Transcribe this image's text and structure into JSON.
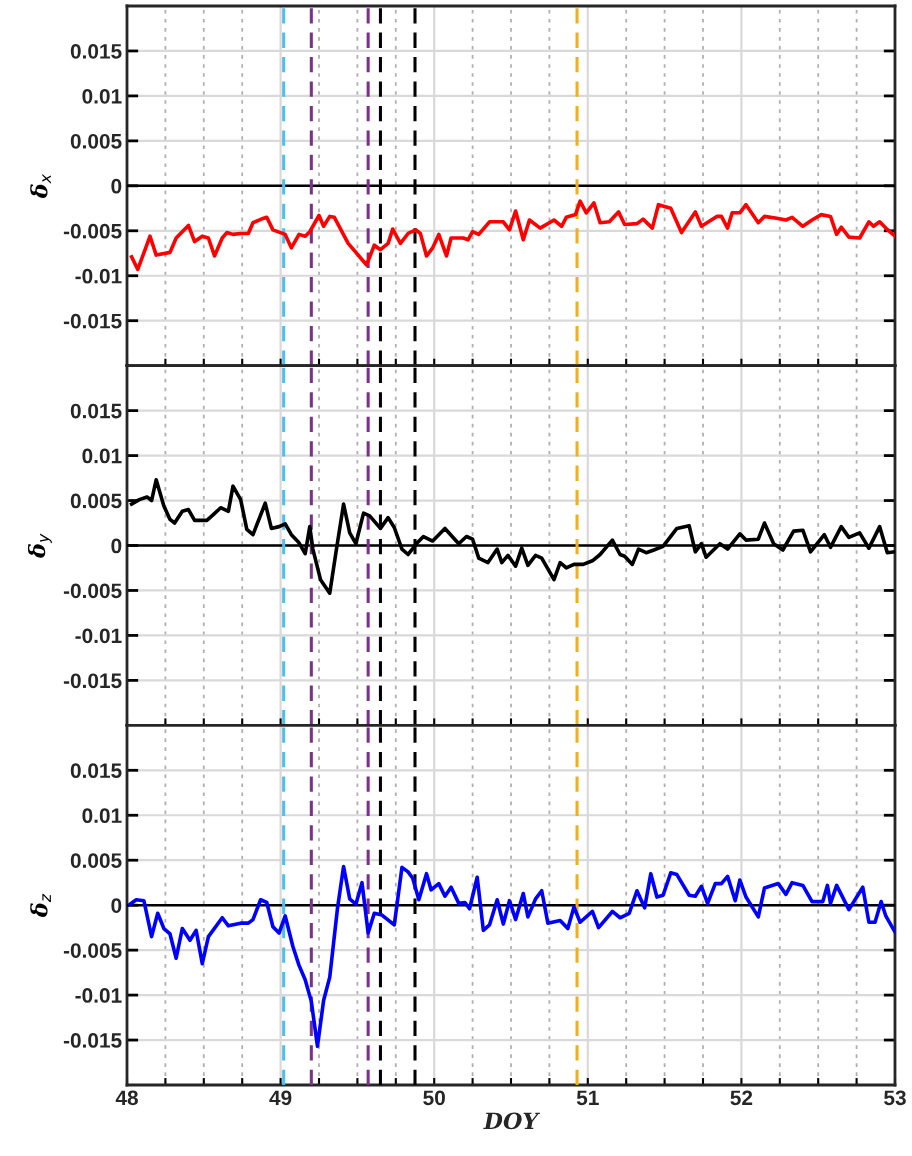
{
  "chart_data": [
    {
      "type": "line",
      "ylabel": "δ$_{x}$",
      "tick_labels": "y",
      "grid": true,
      "marker": "none",
      "line_style": "solid",
      "xlim": [
        48,
        53
      ],
      "xticks": [
        48,
        {
          "value": 48.25,
          "label": null
        },
        {
          "value": 48.5,
          "label": null
        },
        {
          "value": 48.75,
          "label": null
        },
        49,
        {
          "value": 49.25,
          "label": null
        },
        {
          "value": 49.5,
          "label": null
        },
        {
          "value": 49.75,
          "label": null
        },
        50,
        {
          "value": 50.25,
          "label": null
        },
        {
          "value": 50.5,
          "label": null
        },
        {
          "value": 50.75,
          "label": null
        },
        51,
        {
          "value": 51.25,
          "label": null
        },
        {
          "value": 51.5,
          "label": null
        },
        {
          "value": 51.75,
          "label": null
        },
        52,
        {
          "value": 52.25,
          "label": null
        },
        {
          "value": 52.5,
          "label": null
        },
        {
          "value": 52.75,
          "label": null
        },
        53
      ],
      "ylim": [
        -0.02,
        0.02
      ],
      "yticks": [
        -0.015,
        -0.01,
        -0.005,
        0,
        0.005,
        0.01,
        0.015
      ],
      "ref_lines": [
        {
          "axis": "y",
          "value": 0,
          "color": "#000000",
          "line_style": "solid"
        },
        {
          "axis": "x",
          "value": 49.02,
          "color": "#4dbeee",
          "line_style": "dashed"
        },
        {
          "axis": "x",
          "value": 49.2,
          "color": "#7e2f8e",
          "line_style": "dashed"
        },
        {
          "axis": "x",
          "value": 49.57,
          "color": "#7e2f8e",
          "line_style": "dashed"
        },
        {
          "axis": "x",
          "value": 49.65,
          "color": "#000000",
          "line_style": "dashed"
        },
        {
          "axis": "x",
          "value": 49.875,
          "color": "#000000",
          "line_style": "dashed"
        },
        {
          "axis": "x",
          "value": 50.93,
          "color": "#edb120",
          "line_style": "dashed"
        }
      ],
      "series": [
        {
          "color": "#ff0000",
          "x": [
            48.03,
            48.07,
            48.15,
            48.19,
            48.28,
            48.32,
            48.4,
            48.44,
            48.49,
            48.53,
            48.57,
            48.62,
            48.65,
            48.69,
            48.74,
            48.79,
            48.82,
            48.89,
            48.91,
            48.95,
            49.03,
            49.07,
            49.12,
            49.16,
            49.19,
            49.25,
            49.28,
            49.32,
            49.35,
            49.44,
            49.56,
            49.61,
            49.65,
            49.7,
            49.73,
            49.78,
            49.83,
            49.88,
            49.91,
            49.95,
            49.99,
            50.03,
            50.08,
            50.11,
            50.19,
            50.22,
            50.25,
            50.29,
            50.36,
            50.45,
            50.49,
            50.53,
            50.58,
            50.62,
            50.69,
            50.78,
            50.83,
            50.86,
            50.92,
            50.95,
            50.99,
            51.04,
            51.08,
            51.14,
            51.2,
            51.24,
            51.32,
            51.36,
            51.42,
            51.46,
            51.54,
            51.61,
            51.7,
            51.74,
            51.84,
            51.87,
            51.91,
            51.94,
            51.99,
            52.03,
            52.11,
            52.15,
            52.23,
            52.29,
            52.33,
            52.4,
            52.46,
            52.52,
            52.58,
            52.62,
            52.65,
            52.7,
            52.77,
            52.83,
            52.86,
            52.9,
            52.94,
            53.0
          ],
          "values": [
            -0.0079,
            -0.0093,
            -0.0056,
            -0.0077,
            -0.0074,
            -0.0058,
            -0.0044,
            -0.0062,
            -0.0056,
            -0.0058,
            -0.0078,
            -0.0058,
            -0.0052,
            -0.0054,
            -0.0053,
            -0.0053,
            -0.0041,
            -0.0036,
            -0.0035,
            -0.0049,
            -0.0054,
            -0.0069,
            -0.0054,
            -0.0056,
            -0.0051,
            -0.0033,
            -0.0045,
            -0.0034,
            -0.0035,
            -0.0064,
            -0.0088,
            -0.0066,
            -0.0071,
            -0.0064,
            -0.0048,
            -0.0064,
            -0.0053,
            -0.0049,
            -0.0053,
            -0.0078,
            -0.0069,
            -0.0054,
            -0.0078,
            -0.0058,
            -0.0058,
            -0.006,
            -0.0051,
            -0.0054,
            -0.004,
            -0.004,
            -0.0049,
            -0.0028,
            -0.006,
            -0.0038,
            -0.0047,
            -0.0038,
            -0.0045,
            -0.0035,
            -0.0032,
            -0.0017,
            -0.003,
            -0.0019,
            -0.0041,
            -0.004,
            -0.0029,
            -0.0043,
            -0.0042,
            -0.0037,
            -0.0047,
            -0.0021,
            -0.0025,
            -0.0052,
            -0.0029,
            -0.0045,
            -0.0034,
            -0.0034,
            -0.0047,
            -0.003,
            -0.003,
            -0.0021,
            -0.0041,
            -0.0034,
            -0.0036,
            -0.0038,
            -0.0035,
            -0.0045,
            -0.0038,
            -0.0032,
            -0.0034,
            -0.0054,
            -0.0046,
            -0.0057,
            -0.0058,
            -0.004,
            -0.0045,
            -0.004,
            -0.0047,
            -0.0056
          ]
        }
      ]
    },
    {
      "type": "line",
      "ylabel": "δ$_{y}$",
      "tick_labels": "y",
      "grid": true,
      "marker": "none",
      "line_style": "solid",
      "xlim": [
        48,
        53
      ],
      "xticks": [
        48,
        {
          "value": 48.25,
          "label": null
        },
        {
          "value": 48.5,
          "label": null
        },
        {
          "value": 48.75,
          "label": null
        },
        49,
        {
          "value": 49.25,
          "label": null
        },
        {
          "value": 49.5,
          "label": null
        },
        {
          "value": 49.75,
          "label": null
        },
        50,
        {
          "value": 50.25,
          "label": null
        },
        {
          "value": 50.5,
          "label": null
        },
        {
          "value": 50.75,
          "label": null
        },
        51,
        {
          "value": 51.25,
          "label": null
        },
        {
          "value": 51.5,
          "label": null
        },
        {
          "value": 51.75,
          "label": null
        },
        52,
        {
          "value": 52.25,
          "label": null
        },
        {
          "value": 52.5,
          "label": null
        },
        {
          "value": 52.75,
          "label": null
        },
        53
      ],
      "ylim": [
        -0.02,
        0.02
      ],
      "yticks": [
        -0.015,
        -0.01,
        -0.005,
        0,
        0.005,
        0.01,
        0.015
      ],
      "ref_lines": [
        {
          "axis": "y",
          "value": 0,
          "color": "#000000",
          "line_style": "solid"
        },
        {
          "axis": "x",
          "value": 49.02,
          "color": "#4dbeee",
          "line_style": "dashed"
        },
        {
          "axis": "x",
          "value": 49.2,
          "color": "#7e2f8e",
          "line_style": "dashed"
        },
        {
          "axis": "x",
          "value": 49.57,
          "color": "#7e2f8e",
          "line_style": "dashed"
        },
        {
          "axis": "x",
          "value": 49.65,
          "color": "#000000",
          "line_style": "dashed"
        },
        {
          "axis": "x",
          "value": 49.875,
          "color": "#000000",
          "line_style": "dashed"
        },
        {
          "axis": "x",
          "value": 50.93,
          "color": "#edb120",
          "line_style": "dashed"
        }
      ],
      "series": [
        {
          "color": "#000000",
          "x": [
            48.03,
            48.08,
            48.13,
            48.16,
            48.19,
            48.24,
            48.28,
            48.31,
            48.36,
            48.4,
            48.44,
            48.52,
            48.56,
            48.61,
            48.66,
            48.69,
            48.74,
            48.78,
            48.82,
            48.9,
            48.94,
            48.99,
            49.03,
            49.07,
            49.12,
            49.16,
            49.19,
            49.21,
            49.26,
            49.32,
            49.36,
            49.41,
            49.45,
            49.49,
            49.54,
            49.58,
            49.65,
            49.7,
            49.74,
            49.79,
            49.83,
            49.89,
            49.93,
            49.99,
            50.07,
            50.16,
            50.21,
            50.25,
            50.29,
            50.35,
            50.41,
            50.44,
            50.48,
            50.53,
            50.57,
            50.61,
            50.66,
            50.7,
            50.78,
            50.82,
            50.86,
            50.91,
            50.97,
            51.03,
            51.08,
            51.16,
            51.21,
            51.24,
            51.29,
            51.33,
            51.38,
            51.43,
            51.49,
            51.58,
            51.66,
            51.7,
            51.74,
            51.77,
            51.86,
            51.91,
            51.99,
            52.03,
            52.11,
            52.15,
            52.21,
            52.27,
            52.34,
            52.4,
            52.45,
            52.54,
            52.58,
            52.65,
            52.7,
            52.77,
            52.83,
            52.9,
            52.95,
            53.0
          ],
          "values": [
            0.0046,
            0.0051,
            0.0054,
            0.005,
            0.0073,
            0.0044,
            0.0029,
            0.0025,
            0.0038,
            0.004,
            0.0028,
            0.0028,
            0.0034,
            0.0042,
            0.0038,
            0.0066,
            0.0051,
            0.0018,
            0.0012,
            0.0047,
            0.0019,
            0.0021,
            0.0024,
            0.0012,
            0.0003,
            -0.0009,
            0.0021,
            -0.0004,
            -0.0038,
            -0.0053,
            -0.0008,
            0.0046,
            0.0014,
            0.0002,
            0.0036,
            0.0033,
            0.0019,
            0.0031,
            0.002,
            -0.0004,
            -0.001,
            0.0003,
            0.001,
            0.0005,
            0.0019,
            0.0002,
            0.001,
            0.0007,
            -0.0014,
            -0.0019,
            -0.0004,
            -0.0019,
            -0.0011,
            -0.0023,
            -0.0003,
            -0.0022,
            -0.0011,
            -0.0014,
            -0.0038,
            -0.0019,
            -0.0025,
            -0.0021,
            -0.0021,
            -0.0017,
            -0.001,
            0.0006,
            -0.001,
            -0.0012,
            -0.0021,
            -0.0004,
            -0.0008,
            -0.0005,
            -0.0001,
            0.0019,
            0.0022,
            -0.0007,
            0.0002,
            -0.0013,
            0.0002,
            -0.0004,
            0.0013,
            0.0006,
            0.0007,
            0.0025,
            0.0002,
            -0.0005,
            0.0016,
            0.0017,
            -0.0007,
            0.0012,
            -0.0002,
            0.0021,
            0.0009,
            0.0014,
            -0.0003,
            0.0021,
            -0.0008,
            -0.0007
          ]
        }
      ]
    },
    {
      "type": "line",
      "ylabel": "δ$_{z}$",
      "xlabel": "DOY",
      "grid": true,
      "marker": "none",
      "line_style": "solid",
      "xlim": [
        48,
        53
      ],
      "xticks": [
        48,
        {
          "value": 48.25,
          "label": null
        },
        {
          "value": 48.5,
          "label": null
        },
        {
          "value": 48.75,
          "label": null
        },
        49,
        {
          "value": 49.25,
          "label": null
        },
        {
          "value": 49.5,
          "label": null
        },
        {
          "value": 49.75,
          "label": null
        },
        50,
        {
          "value": 50.25,
          "label": null
        },
        {
          "value": 50.5,
          "label": null
        },
        {
          "value": 50.75,
          "label": null
        },
        51,
        {
          "value": 51.25,
          "label": null
        },
        {
          "value": 51.5,
          "label": null
        },
        {
          "value": 51.75,
          "label": null
        },
        52,
        {
          "value": 52.25,
          "label": null
        },
        {
          "value": 52.5,
          "label": null
        },
        {
          "value": 52.75,
          "label": null
        },
        53
      ],
      "ylim": [
        -0.02,
        0.02
      ],
      "yticks": [
        -0.015,
        -0.01,
        -0.005,
        0,
        0.005,
        0.01,
        0.015
      ],
      "ref_lines": [
        {
          "axis": "y",
          "value": 0,
          "color": "#000000",
          "line_style": "solid"
        },
        {
          "axis": "x",
          "value": 49.02,
          "color": "#4dbeee",
          "line_style": "dashed"
        },
        {
          "axis": "x",
          "value": 49.2,
          "color": "#7e2f8e",
          "line_style": "dashed"
        },
        {
          "axis": "x",
          "value": 49.57,
          "color": "#7e2f8e",
          "line_style": "dashed"
        },
        {
          "axis": "x",
          "value": 49.65,
          "color": "#000000",
          "line_style": "dashed"
        },
        {
          "axis": "x",
          "value": 49.875,
          "color": "#000000",
          "line_style": "dashed"
        },
        {
          "axis": "x",
          "value": 50.93,
          "color": "#edb120",
          "line_style": "dashed"
        }
      ],
      "series": [
        {
          "color": "#0000ff",
          "x": [
            48.02,
            48.06,
            48.11,
            48.16,
            48.2,
            48.24,
            48.28,
            48.32,
            48.36,
            48.41,
            48.45,
            48.49,
            48.53,
            48.62,
            48.66,
            48.74,
            48.79,
            48.82,
            48.87,
            48.91,
            48.95,
            48.99,
            49.03,
            49.08,
            49.12,
            49.16,
            49.2,
            49.24,
            49.28,
            49.32,
            49.37,
            49.41,
            49.45,
            49.49,
            49.53,
            49.57,
            49.61,
            49.66,
            49.74,
            49.79,
            49.83,
            49.86,
            49.9,
            49.95,
            49.98,
            50.03,
            50.07,
            50.11,
            50.16,
            50.2,
            50.23,
            50.28,
            50.32,
            50.36,
            50.41,
            50.45,
            50.49,
            50.53,
            50.58,
            50.61,
            50.66,
            50.7,
            50.74,
            50.82,
            50.87,
            50.91,
            50.95,
            51.03,
            51.07,
            51.16,
            51.21,
            51.27,
            51.32,
            51.37,
            51.41,
            51.45,
            51.49,
            51.54,
            51.58,
            51.66,
            51.7,
            51.74,
            51.78,
            51.83,
            51.87,
            51.91,
            51.96,
            51.99,
            52.03,
            52.11,
            52.15,
            52.24,
            52.29,
            52.33,
            52.4,
            52.46,
            52.53,
            52.56,
            52.58,
            52.62,
            52.7,
            52.79,
            52.83,
            52.87,
            52.91,
            52.94,
            53.0
          ],
          "values": [
            0.0001,
            0.0006,
            0.0005,
            -0.0035,
            -0.0009,
            -0.0026,
            -0.0032,
            -0.0059,
            -0.0026,
            -0.0039,
            -0.0028,
            -0.0065,
            -0.0035,
            -0.0014,
            -0.0023,
            -0.002,
            -0.002,
            -0.0016,
            0.0006,
            0.0003,
            -0.0024,
            -0.0031,
            -0.0012,
            -0.0046,
            -0.0067,
            -0.0083,
            -0.0107,
            -0.0157,
            -0.0106,
            -0.008,
            -0.0004,
            0.0043,
            0.0007,
            0.0001,
            0.0025,
            -0.0031,
            -0.0009,
            -0.0011,
            -0.0022,
            0.0042,
            0.0037,
            0.003,
            0.0006,
            0.0035,
            0.0017,
            0.0024,
            0.001,
            0.002,
            0.0002,
            0.0003,
            -0.0004,
            0.0031,
            -0.0028,
            -0.0022,
            0.0006,
            -0.0021,
            0.0005,
            -0.0016,
            0.0013,
            -0.0013,
            0.0007,
            0.0016,
            -0.002,
            -0.0017,
            -0.0026,
            -0.0002,
            -0.0019,
            -0.0007,
            -0.0025,
            -0.0007,
            -0.0014,
            -0.0009,
            0.0016,
            -0.0003,
            0.0035,
            0.0009,
            0.0011,
            0.0036,
            0.0034,
            0.0011,
            0.001,
            0.0021,
            0.0002,
            0.0024,
            0.0024,
            0.0032,
            0.0005,
            0.0028,
            0.0009,
            -0.0013,
            0.0019,
            0.0024,
            0.0012,
            0.0025,
            0.0022,
            0.0004,
            0.0004,
            0.0022,
            0.0002,
            0.0022,
            -0.0005,
            0.002,
            -0.0019,
            -0.0019,
            0.0004,
            -0.0012,
            -0.003
          ]
        }
      ]
    }
  ]
}
